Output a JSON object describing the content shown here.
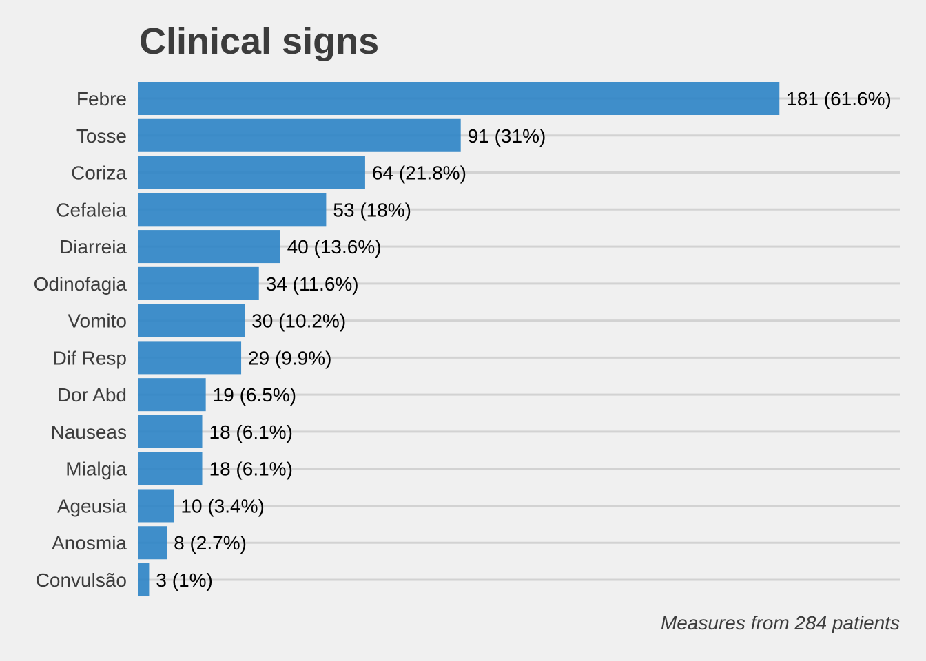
{
  "chart_data": {
    "type": "bar",
    "orientation": "horizontal",
    "title": "Clinical signs",
    "caption": "Measures from 284 patients",
    "categories": [
      "Febre",
      "Tosse",
      "Coriza",
      "Cefaleia",
      "Diarreia",
      "Odinofagia",
      "Vomito",
      "Dif Resp",
      "Dor Abd",
      "Nauseas",
      "Mialgia",
      "Ageusia",
      "Anosmia",
      "Convulsão"
    ],
    "values": [
      181,
      91,
      64,
      53,
      40,
      34,
      30,
      29,
      19,
      18,
      18,
      10,
      8,
      3
    ],
    "data_labels": [
      "181 (61.6%)",
      "91 (31%)",
      "64 (21.8%)",
      "53 (18%)",
      "40 (13.6%)",
      "34 (11.6%)",
      "30 (10.2%)",
      "29 (9.9%)",
      "19 (6.5%)",
      "18 (6.1%)",
      "18 (6.1%)",
      "10 (3.4%)",
      "8 (2.7%)",
      "3 (1%)"
    ],
    "xlim": [
      0,
      215
    ],
    "xlabel": "",
    "ylabel": "",
    "grid": "horizontal",
    "legend": "none",
    "bar_color": "#2b83c5",
    "background_color": "#f0f0f0"
  }
}
